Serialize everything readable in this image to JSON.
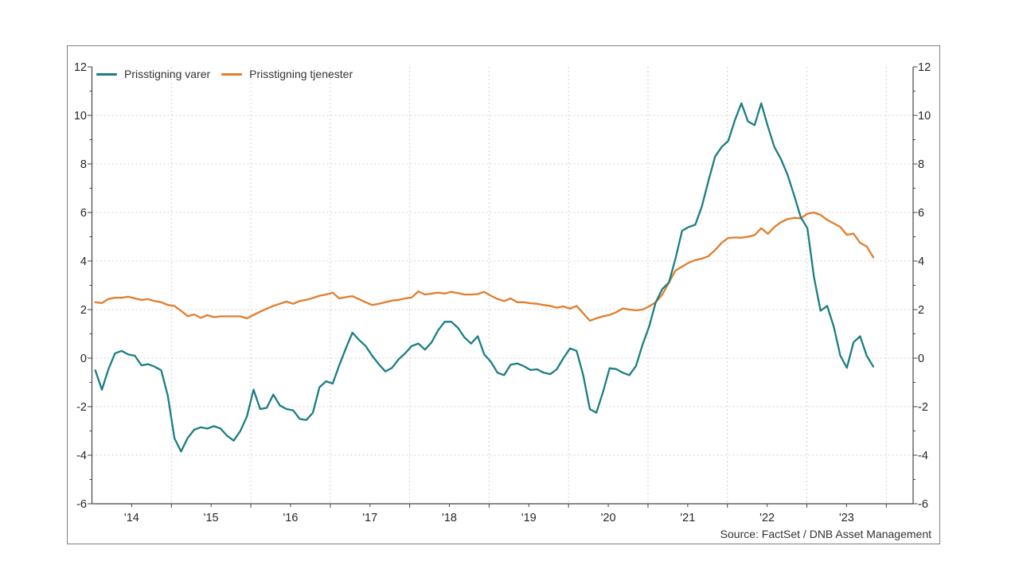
{
  "chart_data": {
    "type": "line",
    "title": "",
    "x_start": "2014-01",
    "x_frequency": "monthly",
    "x_tick_labels": [
      "'14",
      "'15",
      "'16",
      "'17",
      "'18",
      "'19",
      "'20",
      "'21",
      "'22",
      "'23"
    ],
    "y_ticks": [
      12,
      10,
      8,
      6,
      4,
      2,
      0,
      -2,
      -4,
      -6
    ],
    "ylim": [
      -6,
      12
    ],
    "grid": true,
    "legend_position": "top-left",
    "axis_color": "#444444",
    "grid_color": "#d2d2d2",
    "text_color": "#262626",
    "source": "Source: FactSet / DNB Asset Management",
    "series": [
      {
        "name": "Prisstigning varer",
        "color": "#1b7e81",
        "values": [
          -0.5,
          -1.3,
          -0.45,
          0.2,
          0.3,
          0.15,
          0.1,
          -0.3,
          -0.25,
          -0.35,
          -0.5,
          -1.55,
          -3.3,
          -3.85,
          -3.3,
          -2.95,
          -2.85,
          -2.9,
          -2.8,
          -2.9,
          -3.2,
          -3.4,
          -3.0,
          -2.4,
          -1.3,
          -2.1,
          -2.05,
          -1.5,
          -1.95,
          -2.1,
          -2.15,
          -2.5,
          -2.55,
          -2.25,
          -1.2,
          -0.95,
          -1.05,
          -0.3,
          0.4,
          1.05,
          0.75,
          0.5,
          0.1,
          -0.25,
          -0.55,
          -0.4,
          -0.05,
          0.2,
          0.5,
          0.6,
          0.35,
          0.65,
          1.15,
          1.5,
          1.5,
          1.25,
          0.85,
          0.6,
          0.9,
          0.15,
          -0.15,
          -0.6,
          -0.7,
          -0.27,
          -0.22,
          -0.33,
          -0.49,
          -0.46,
          -0.6,
          -0.66,
          -0.46,
          0.0,
          0.4,
          0.3,
          -0.7,
          -2.1,
          -2.25,
          -1.4,
          -0.42,
          -0.45,
          -0.6,
          -0.7,
          -0.33,
          0.55,
          1.3,
          2.3,
          2.85,
          3.11,
          4.1,
          5.25,
          5.4,
          5.5,
          6.25,
          7.3,
          8.3,
          8.7,
          8.95,
          9.8,
          10.5,
          9.75,
          9.6,
          10.5,
          9.55,
          8.7,
          8.2,
          7.55,
          6.7,
          5.8,
          5.35,
          3.35,
          1.95,
          2.15,
          1.3,
          0.1,
          -0.4,
          0.65,
          0.9,
          0.1,
          -0.35
        ]
      },
      {
        "name": "Prisstigning tjenester",
        "color": "#e27d2b",
        "values": [
          2.3,
          2.27,
          2.44,
          2.49,
          2.49,
          2.53,
          2.46,
          2.4,
          2.43,
          2.35,
          2.3,
          2.19,
          2.15,
          1.95,
          1.73,
          1.8,
          1.66,
          1.77,
          1.69,
          1.72,
          1.72,
          1.72,
          1.72,
          1.64,
          1.78,
          1.91,
          2.04,
          2.15,
          2.24,
          2.33,
          2.24,
          2.35,
          2.4,
          2.48,
          2.57,
          2.62,
          2.7,
          2.46,
          2.51,
          2.55,
          2.43,
          2.3,
          2.19,
          2.24,
          2.3,
          2.37,
          2.4,
          2.46,
          2.5,
          2.75,
          2.62,
          2.66,
          2.7,
          2.66,
          2.73,
          2.68,
          2.62,
          2.62,
          2.64,
          2.73,
          2.57,
          2.44,
          2.35,
          2.46,
          2.3,
          2.3,
          2.26,
          2.24,
          2.19,
          2.15,
          2.08,
          2.13,
          2.04,
          2.15,
          1.85,
          1.54,
          1.64,
          1.72,
          1.78,
          1.89,
          2.05,
          2.0,
          1.97,
          2.0,
          2.13,
          2.3,
          2.62,
          3.11,
          3.61,
          3.77,
          3.93,
          4.04,
          4.1,
          4.2,
          4.45,
          4.75,
          4.95,
          4.97,
          4.96,
          5.0,
          5.07,
          5.35,
          5.12,
          5.4,
          5.6,
          5.73,
          5.78,
          5.76,
          5.95,
          6.0,
          5.9,
          5.7,
          5.55,
          5.4,
          5.08,
          5.13,
          4.75,
          4.6,
          4.15
        ]
      }
    ]
  }
}
